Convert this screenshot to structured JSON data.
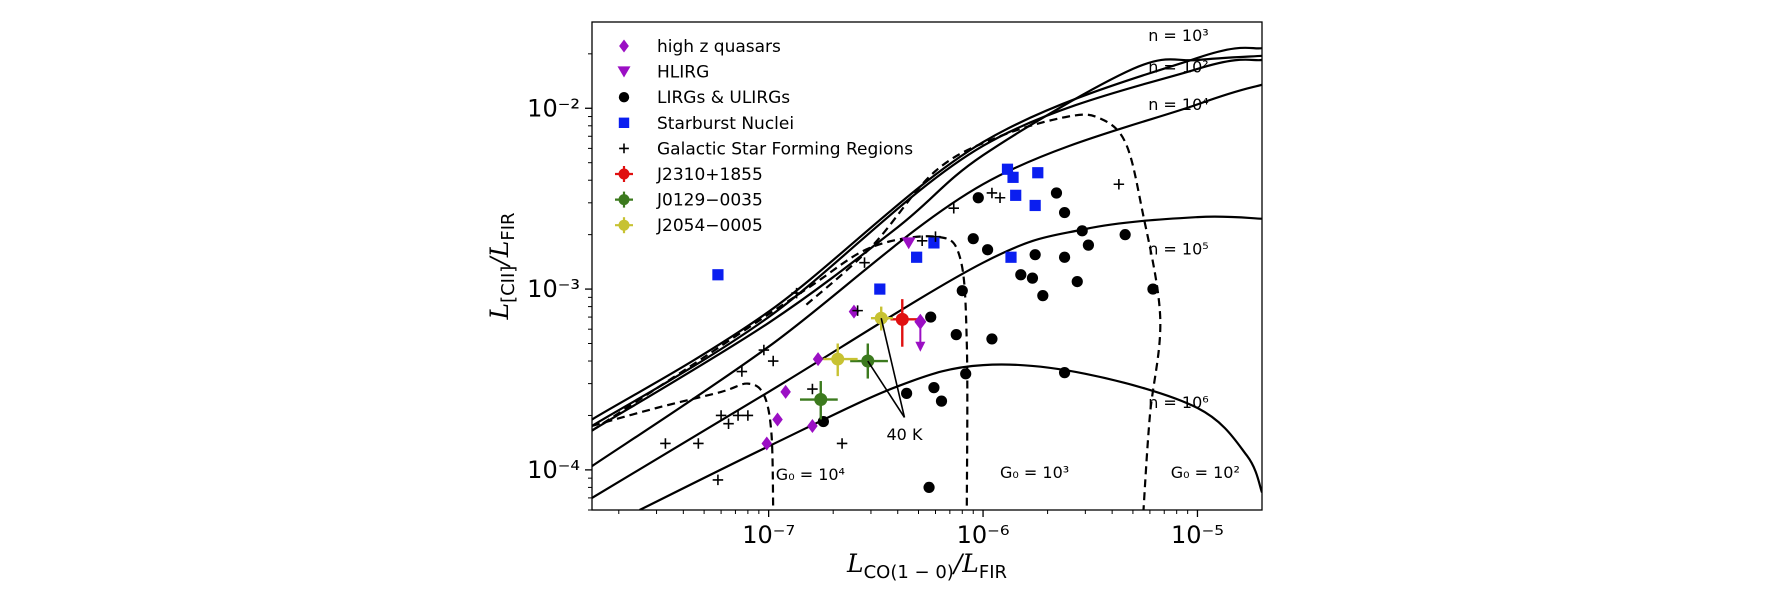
{
  "chart_data": {
    "type": "scatter",
    "xscale": "log",
    "yscale": "log",
    "xlim": [
      1.5e-08,
      2e-05
    ],
    "ylim": [
      6e-05,
      0.03
    ],
    "xticks": [
      {
        "value": 1e-07,
        "label": "10⁻⁷"
      },
      {
        "value": 1e-06,
        "label": "10⁻⁶"
      },
      {
        "value": 1e-05,
        "label": "10⁻⁵"
      }
    ],
    "yticks": [
      {
        "value": 0.0001,
        "label": "10⁻⁴"
      },
      {
        "value": 0.001,
        "label": "10⁻³"
      },
      {
        "value": 0.01,
        "label": "10⁻²"
      }
    ],
    "xlabel": {
      "main": "L",
      "sub": "CO(1 − 0)",
      "rest": "/L",
      "sub2": "FIR"
    },
    "ylabel": {
      "main": "L",
      "sub": "[CII]",
      "rest": "/L",
      "sub2": "FIR"
    },
    "legend_position": "top-left",
    "series": [
      {
        "name": "high z quasars",
        "marker": "diamond",
        "color": "#9b0fc4",
        "points": [
          [
            1.1e-07,
            0.00019
          ],
          [
            9.8e-08,
            0.00014
          ],
          [
            1.2e-07,
            0.00027
          ],
          [
            1.6e-07,
            0.000175
          ],
          [
            1.7e-07,
            0.00041
          ],
          [
            2.5e-07,
            0.00075
          ]
        ]
      },
      {
        "name": "HLIRG",
        "marker": "triangle-down",
        "color": "#9b0fc4",
        "points": [
          [
            4.5e-07,
            0.0018
          ]
        ]
      },
      {
        "name": "LIRGs & ULIRGs",
        "marker": "circle",
        "color": "#000000",
        "points": [
          [
            1.8e-07,
            0.000185
          ],
          [
            4.4e-07,
            0.000265
          ],
          [
            5.6e-07,
            8e-05
          ],
          [
            5.9e-07,
            0.000285
          ],
          [
            6.4e-07,
            0.00024
          ],
          [
            5.7e-07,
            0.0007
          ],
          [
            7.5e-07,
            0.00056
          ],
          [
            8e-07,
            0.00098
          ],
          [
            8.3e-07,
            0.00034
          ],
          [
            9e-07,
            0.0019
          ],
          [
            1.05e-06,
            0.00165
          ],
          [
            1.1e-06,
            0.00053
          ],
          [
            9.5e-07,
            0.0032
          ],
          [
            1.5e-06,
            0.0012
          ],
          [
            1.7e-06,
            0.00115
          ],
          [
            1.75e-06,
            0.00155
          ],
          [
            1.9e-06,
            0.00092
          ],
          [
            2.2e-06,
            0.0034
          ],
          [
            2.4e-06,
            0.0015
          ],
          [
            2.4e-06,
            0.00265
          ],
          [
            2.75e-06,
            0.0011
          ],
          [
            2.9e-06,
            0.0021
          ],
          [
            3.1e-06,
            0.00175
          ],
          [
            4.6e-06,
            0.002
          ],
          [
            6.2e-06,
            0.001
          ],
          [
            2.4e-06,
            0.000345
          ]
        ]
      },
      {
        "name": "Starburst Nuclei",
        "marker": "square",
        "color": "#0a1ef0",
        "points": [
          [
            5.8e-08,
            0.0012
          ],
          [
            3.3e-07,
            0.001
          ],
          [
            4.9e-07,
            0.0015
          ],
          [
            5.9e-07,
            0.0018
          ],
          [
            1.3e-06,
            0.0046
          ],
          [
            1.38e-06,
            0.00415
          ],
          [
            1.42e-06,
            0.0033
          ],
          [
            1.75e-06,
            0.0029
          ],
          [
            1.8e-06,
            0.0044
          ],
          [
            1.35e-06,
            0.0015
          ]
        ]
      },
      {
        "name": "Galactic Star Forming Regions",
        "marker": "plus",
        "color": "#000000",
        "points": [
          [
            3.3e-08,
            0.00014
          ],
          [
            4.7e-08,
            0.00014
          ],
          [
            5.8e-08,
            8.8e-05
          ],
          [
            6e-08,
            0.0002
          ],
          [
            6.5e-08,
            0.00018
          ],
          [
            7.2e-08,
            0.0002
          ],
          [
            8e-08,
            0.0002
          ],
          [
            7.5e-08,
            0.00035
          ],
          [
            9.5e-08,
            0.00046
          ],
          [
            1.05e-07,
            0.0004
          ],
          [
            1.35e-07,
            0.00095
          ],
          [
            1.6e-07,
            0.00028
          ],
          [
            2.2e-07,
            0.00014
          ],
          [
            2.6e-07,
            0.00076
          ],
          [
            2.8e-07,
            0.0014
          ],
          [
            5.2e-07,
            0.00185
          ],
          [
            6e-07,
            0.00195
          ],
          [
            7.3e-07,
            0.0028
          ],
          [
            1.1e-06,
            0.0034
          ],
          [
            1.2e-06,
            0.0032
          ],
          [
            4.3e-06,
            0.0038
          ]
        ]
      },
      {
        "name": "J2310+1855",
        "marker": "errorbar",
        "color": "#e01010",
        "points": [
          [
            4.2e-07,
            0.00068
          ]
        ],
        "xerr": [
          [
            3.7e-07,
            5.2e-07
          ]
        ],
        "yerr": [
          [
            0.00048,
            0.00088
          ]
        ]
      },
      {
        "name": "J0129−0035",
        "marker": "errorbar",
        "color": "#3c7a1e",
        "points": [
          [
            2.9e-07,
            0.0004
          ],
          [
            1.75e-07,
            0.000245
          ]
        ],
        "xerr": [
          [
            2.4e-07,
            3.6e-07
          ],
          [
            1.4e-07,
            2.1e-07
          ]
        ],
        "yerr": [
          [
            0.00032,
            0.0005
          ],
          [
            0.00019,
            0.00031
          ]
        ]
      },
      {
        "name": "J2054−0005",
        "marker": "errorbar",
        "color": "#c7c232",
        "points": [
          [
            2.1e-07,
            0.00041
          ],
          [
            3.35e-07,
            0.00069
          ]
        ],
        "xerr": [
          [
            1.8e-07,
            2.6e-07
          ],
          [
            3e-07,
            3.8e-07
          ]
        ],
        "yerr": [
          [
            0.00033,
            0.0005
          ],
          [
            0.00059,
            0.0008
          ]
        ]
      }
    ],
    "model_curves": [
      {
        "label": "n = 10³",
        "style": "solid",
        "points": [
          [
            1.5e-08,
            0.00019
          ],
          [
            1e-07,
            0.00075
          ],
          [
            1e-06,
            0.0065
          ],
          [
            1e-05,
            0.019
          ],
          [
            2e-05,
            0.0215
          ]
        ]
      },
      {
        "label": "n = 10²",
        "style": "solid",
        "points": [
          [
            1.5e-08,
            0.000175
          ],
          [
            1e-07,
            0.0007
          ],
          [
            1e-06,
            0.0062
          ],
          [
            1e-05,
            0.0165
          ],
          [
            2e-05,
            0.0185
          ]
        ]
      },
      {
        "name": "curve",
        "style": "solid",
        "points": [
          [
            1.5e-08,
            0.000165
          ],
          [
            1e-07,
            0.00065
          ],
          [
            4e-07,
            0.0022
          ],
          [
            1e-06,
            0.0055
          ],
          [
            5e-06,
            0.0165
          ],
          [
            1e-05,
            0.0185
          ],
          [
            2e-05,
            0.0195
          ]
        ]
      },
      {
        "label": "n = 10⁴",
        "style": "solid",
        "points": [
          [
            1.5e-08,
            0.000105
          ],
          [
            1e-07,
            0.00048
          ],
          [
            1e-06,
            0.0038
          ],
          [
            1e-05,
            0.0105
          ],
          [
            2e-05,
            0.0135
          ]
        ]
      },
      {
        "label": "n = 10⁵",
        "style": "solid",
        "points": [
          [
            1.5e-08,
            7e-05
          ],
          [
            1e-07,
            0.00027
          ],
          [
            1e-06,
            0.0014
          ],
          [
            3e-06,
            0.00215
          ],
          [
            1e-05,
            0.0025
          ],
          [
            2e-05,
            0.00245
          ]
        ]
      },
      {
        "label": "n = 10⁶",
        "style": "solid",
        "points": [
          [
            2.5e-08,
            6e-05
          ],
          [
            1e-07,
            0.000135
          ],
          [
            4e-07,
            0.00029
          ],
          [
            1e-06,
            0.00038
          ],
          [
            3e-06,
            0.00034
          ],
          [
            1e-05,
            0.00022
          ],
          [
            1.7e-05,
            0.00012
          ],
          [
            2e-05,
            7.5e-05
          ]
        ]
      },
      {
        "label": "G₀ = 10⁴",
        "style": "dashed",
        "points": [
          [
            1.5e-08,
            0.000175
          ],
          [
            3e-08,
            0.00022
          ],
          [
            6e-08,
            0.00027
          ],
          [
            8e-08,
            0.0003
          ],
          [
            9.5e-08,
            0.00026
          ],
          [
            1.03e-07,
            0.00016
          ],
          [
            1.05e-07,
            6e-05
          ]
        ]
      },
      {
        "label": "G₀ = 10³",
        "style": "dashed",
        "points": [
          [
            1.5e-08,
            0.000165
          ],
          [
            5e-08,
            0.00042
          ],
          [
            1.5e-07,
            0.001
          ],
          [
            3e-07,
            0.0017
          ],
          [
            6e-07,
            0.00195
          ],
          [
            7.8e-07,
            0.0015
          ],
          [
            8.4e-07,
            0.0005
          ],
          [
            8.4e-07,
            6e-05
          ]
        ]
      },
      {
        "label": "G₀ = 10²",
        "style": "dashed",
        "points": [
          [
            1.5e-07,
            0.00082
          ],
          [
            3e-07,
            0.0017
          ],
          [
            6e-07,
            0.0045
          ],
          [
            1.2e-06,
            0.007
          ],
          [
            2.5e-06,
            0.009
          ],
          [
            3.5e-06,
            0.0088
          ],
          [
            4.6e-06,
            0.0065
          ],
          [
            5.5e-06,
            0.0028
          ],
          [
            6.7e-06,
            0.0007
          ],
          [
            6e-06,
            0.0002
          ],
          [
            5.6e-06,
            6e-05
          ]
        ]
      }
    ],
    "curve_labels": [
      {
        "text": "n = 10³",
        "x": 1.25e-05,
        "y": 0.0235
      },
      {
        "text": "n = 10²",
        "x": 1.25e-05,
        "y": 0.0158
      },
      {
        "text": "n = 10⁴",
        "x": 1.25e-05,
        "y": 0.0098
      },
      {
        "text": "n = 10⁵",
        "x": 1.25e-05,
        "y": 0.00155
      },
      {
        "text": "n = 10⁶",
        "x": 1.25e-05,
        "y": 0.00022
      },
      {
        "text": "G₀ = 10⁴",
        "x": 1.08e-07,
        "y": 8.8e-05
      },
      {
        "text": "G₀ = 10³",
        "x": 1.2e-06,
        "y": 9e-05
      },
      {
        "text": "G₀ = 10²",
        "x": 7.5e-06,
        "y": 9e-05
      }
    ],
    "annotations": [
      {
        "text": "40 K",
        "x": 4.3e-07,
        "y": 0.00017,
        "arrow_from": [
          4.3e-07,
          0.000195
        ],
        "arrow_to_1": [
          2.9e-07,
          0.0004
        ],
        "arrow_to_2": [
          3.35e-07,
          0.00069
        ]
      }
    ]
  }
}
